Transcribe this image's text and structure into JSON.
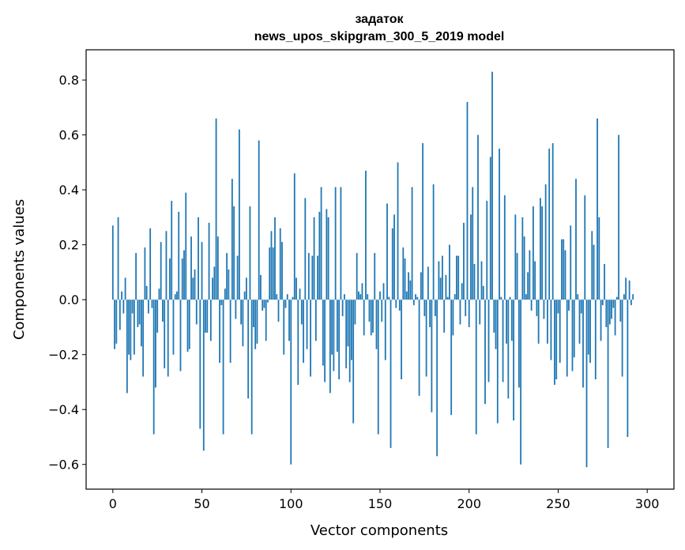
{
  "chart_data": {
    "type": "bar",
    "title": "задаток",
    "subtitle": "news_upos_skipgram_300_5_2019 model",
    "xlabel": "Vector components",
    "ylabel": "Components values",
    "xlim": [
      -15,
      315
    ],
    "ylim": [
      -0.69,
      0.91
    ],
    "xticks": [
      0,
      50,
      100,
      150,
      200,
      250,
      300
    ],
    "xtick_labels": [
      "0",
      "50",
      "100",
      "150",
      "200",
      "250",
      "300"
    ],
    "yticks": [
      -0.6,
      -0.4,
      -0.2,
      0.0,
      0.2,
      0.4,
      0.6,
      0.8
    ],
    "ytick_labels": [
      "−0.6",
      "−0.4",
      "−0.2",
      "0.0",
      "0.2",
      "0.4",
      "0.6",
      "0.8"
    ],
    "bar_color": "#1f77b4",
    "grid": false,
    "values": [
      0.27,
      -0.18,
      -0.16,
      0.3,
      -0.11,
      0.03,
      -0.05,
      0.08,
      -0.34,
      -0.2,
      -0.22,
      -0.05,
      -0.2,
      0.17,
      -0.1,
      -0.09,
      -0.17,
      -0.28,
      0.19,
      0.05,
      -0.05,
      0.26,
      -0.03,
      -0.49,
      -0.32,
      -0.12,
      0.04,
      0.21,
      -0.08,
      -0.25,
      0.25,
      -0.28,
      0.15,
      0.36,
      -0.2,
      0.02,
      0.03,
      0.32,
      -0.26,
      0.15,
      0.18,
      0.39,
      -0.19,
      -0.18,
      0.23,
      0.08,
      0.11,
      -0.09,
      0.3,
      -0.47,
      0.21,
      -0.55,
      -0.12,
      -0.12,
      0.28,
      -0.15,
      0.08,
      0.12,
      0.66,
      0.23,
      -0.23,
      -0.02,
      -0.49,
      0.04,
      0.17,
      0.11,
      -0.23,
      0.44,
      0.34,
      -0.07,
      0.16,
      0.62,
      -0.09,
      -0.17,
      0.03,
      0.08,
      -0.36,
      0.34,
      -0.49,
      -0.1,
      -0.18,
      -0.16,
      0.58,
      0.09,
      -0.04,
      -0.03,
      -0.15,
      -0.01,
      0.19,
      0.25,
      0.19,
      0.3,
      0.02,
      -0.08,
      0.26,
      0.21,
      -0.2,
      -0.03,
      0.02,
      -0.15,
      -0.6,
      0.01,
      0.46,
      0.08,
      -0.31,
      0.04,
      -0.09,
      -0.23,
      0.37,
      -0.18,
      0.17,
      -0.28,
      0.16,
      0.3,
      -0.15,
      0.16,
      0.32,
      0.41,
      -0.24,
      -0.3,
      0.33,
      0.3,
      -0.34,
      -0.2,
      -0.26,
      0.41,
      -0.19,
      -0.29,
      0.41,
      -0.06,
      0.02,
      -0.25,
      -0.17,
      -0.3,
      -0.22,
      -0.45,
      -0.09,
      0.17,
      0.03,
      0.02,
      0.06,
      -0.13,
      0.47,
      0.02,
      -0.08,
      -0.13,
      -0.12,
      0.17,
      -0.18,
      -0.49,
      0.03,
      -0.08,
      0.06,
      -0.22,
      0.35,
      0.01,
      -0.54,
      0.26,
      0.31,
      -0.03,
      0.5,
      -0.04,
      -0.29,
      0.19,
      0.15,
      0.03,
      0.1,
      0.07,
      0.41,
      -0.02,
      0.02,
      0.01,
      -0.35,
      0.1,
      0.57,
      -0.06,
      -0.28,
      0.12,
      -0.1,
      -0.41,
      0.42,
      -0.06,
      -0.57,
      0.14,
      0.08,
      0.16,
      -0.12,
      0.09,
      0.01,
      0.2,
      -0.42,
      -0.13,
      0.02,
      0.16,
      0.16,
      -0.09,
      0.06,
      0.28,
      -0.06,
      0.72,
      -0.1,
      0.31,
      0.41,
      0.13,
      -0.49,
      0.6,
      -0.09,
      0.14,
      0.05,
      -0.38,
      0.36,
      -0.3,
      0.52,
      0.83,
      -0.12,
      -0.18,
      -0.45,
      0.55,
      0.01,
      -0.3,
      0.38,
      -0.16,
      -0.36,
      0.01,
      -0.15,
      -0.44,
      0.31,
      0.17,
      -0.32,
      -0.6,
      0.3,
      0.23,
      0.02,
      0.1,
      0.18,
      -0.04,
      0.34,
      0.14,
      -0.06,
      -0.16,
      0.37,
      0.34,
      -0.07,
      0.42,
      -0.16,
      0.55,
      -0.22,
      0.57,
      -0.31,
      -0.29,
      -0.05,
      -0.23,
      0.22,
      0.22,
      0.18,
      -0.28,
      -0.04,
      0.27,
      -0.26,
      -0.21,
      0.44,
      0.02,
      -0.16,
      -0.05,
      -0.32,
      0.38,
      -0.61,
      -0.2,
      -0.23,
      0.25,
      0.2,
      -0.29,
      0.66,
      0.3,
      -0.15,
      -0.02,
      0.13,
      -0.1,
      -0.54,
      -0.09,
      -0.07,
      -0.03,
      -0.13,
      0.01,
      0.6,
      -0.08,
      -0.28,
      0.02,
      0.08,
      -0.5,
      0.07,
      -0.02,
      0.02
    ]
  }
}
